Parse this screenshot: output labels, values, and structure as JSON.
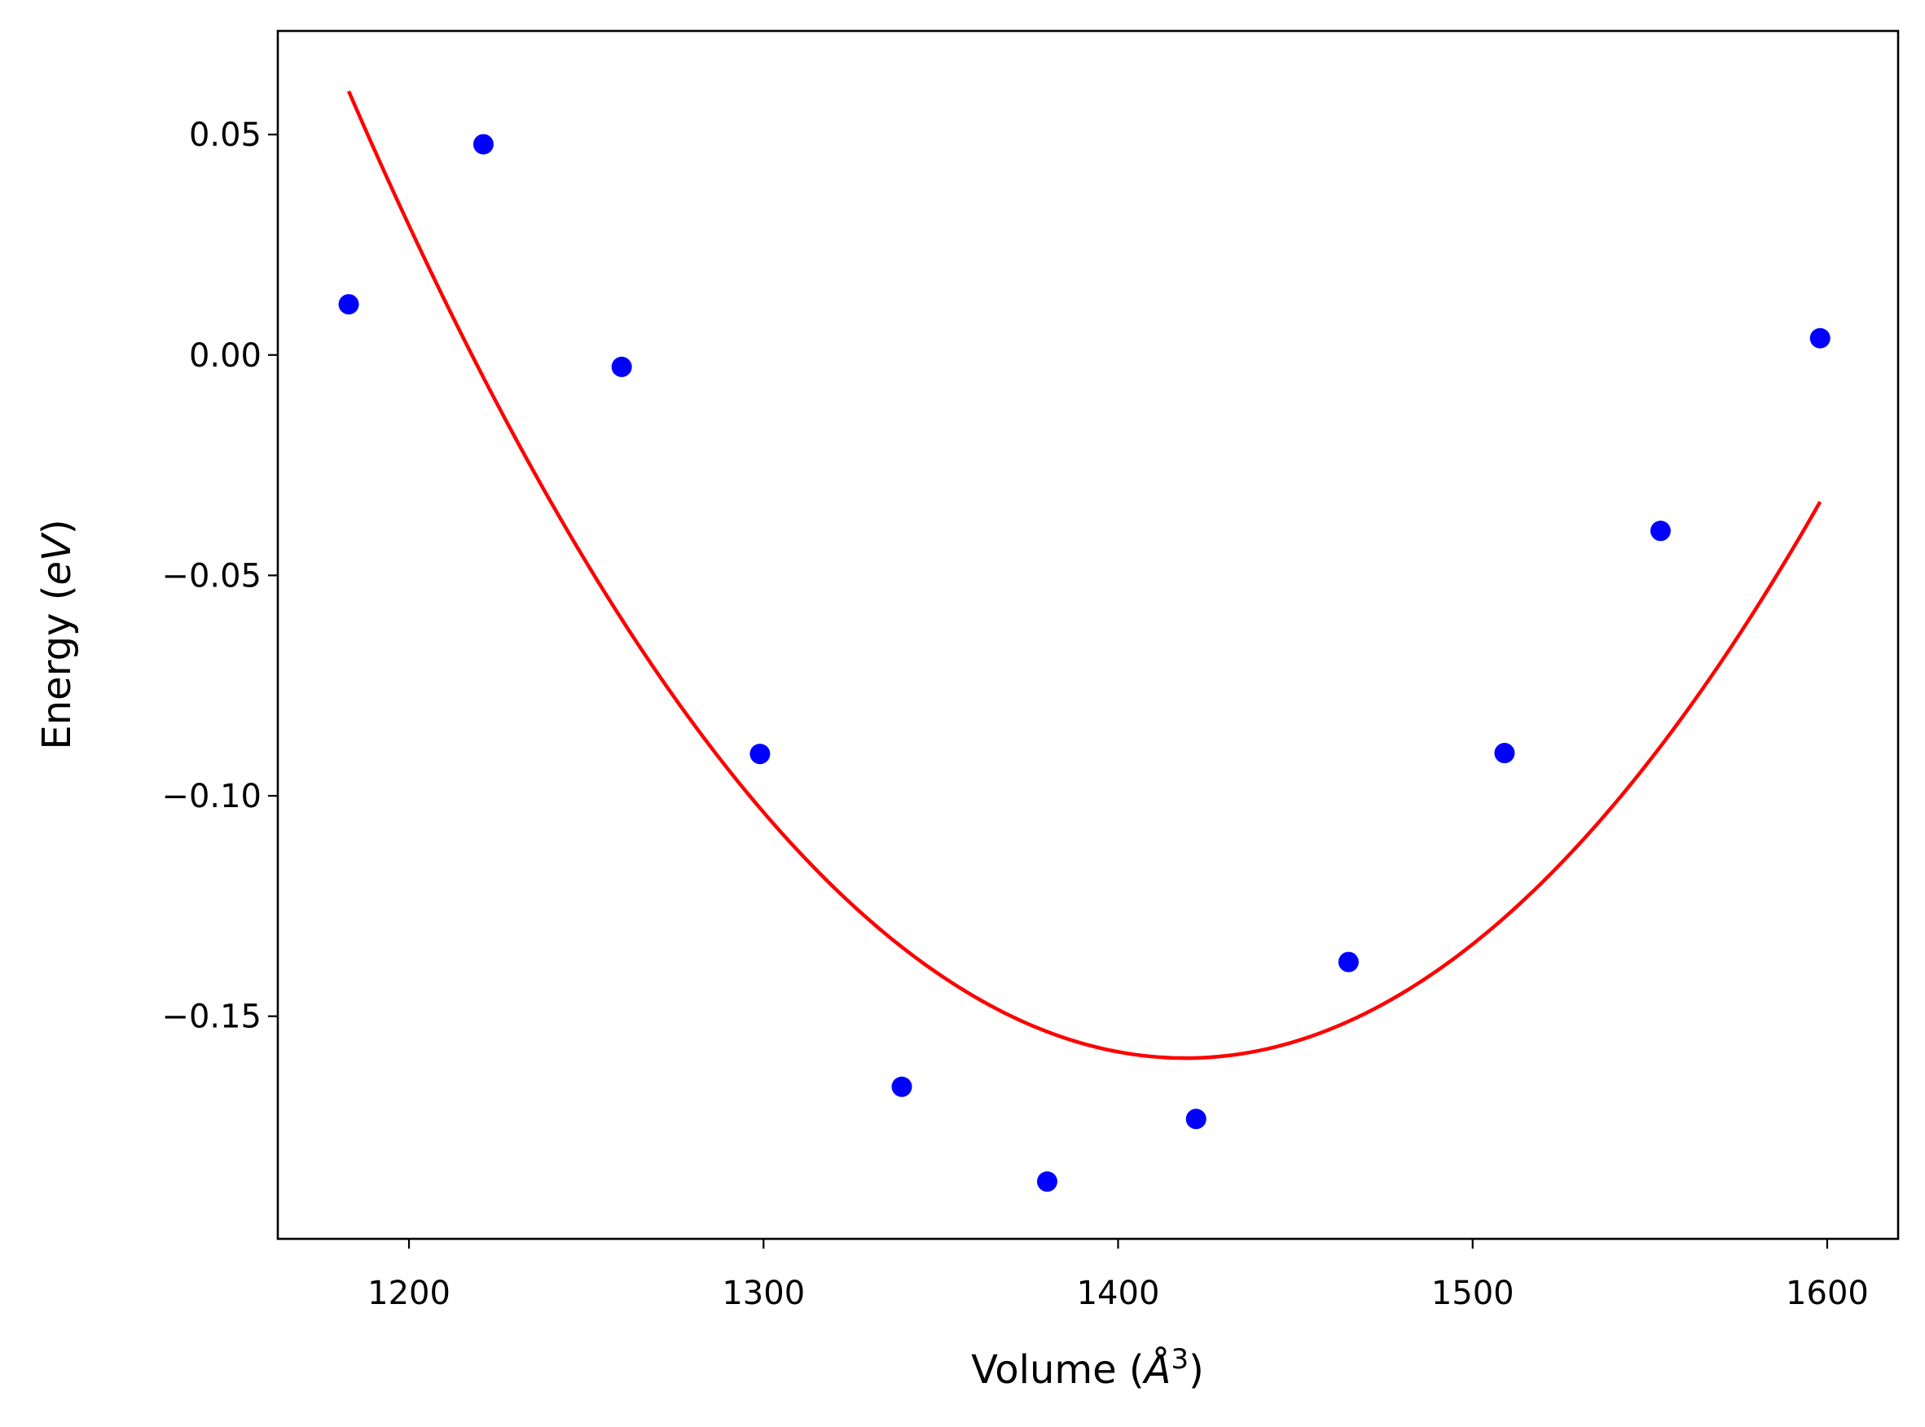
{
  "chart_data": {
    "type": "scatter",
    "title": "",
    "xlabel": "Volume (Å³)",
    "ylabel": "Energy (eV)",
    "xlabel_parts": {
      "prefix": "Volume (",
      "unit": "Å",
      "exponent": "3",
      "suffix": ")"
    },
    "ylabel_parts": {
      "prefix": "Energy (",
      "unit": "eV",
      "suffix": ")"
    },
    "xlim": [
      1163,
      1620
    ],
    "ylim": [
      -0.2005,
      0.0735
    ],
    "xticks": [
      1200,
      1300,
      1400,
      1500,
      1600
    ],
    "xtick_labels": [
      "1200",
      "1300",
      "1400",
      "1500",
      "1600"
    ],
    "yticks": [
      0.05,
      0.0,
      -0.05,
      -0.1,
      -0.15
    ],
    "ytick_labels": [
      "0.05",
      "0.00",
      "−0.05",
      "−0.10",
      "−0.15"
    ],
    "grid": false,
    "legend": "none",
    "series": [
      {
        "kind": "scatter",
        "color": "#0000ff",
        "x": [
          1183,
          1221,
          1260,
          1299,
          1339,
          1380,
          1422,
          1465,
          1509,
          1553,
          1598
        ],
        "y": [
          0.0115,
          0.0478,
          -0.0027,
          -0.0905,
          -0.166,
          -0.1875,
          -0.1733,
          -0.1377,
          -0.0903,
          -0.0399,
          0.0038
        ]
      },
      {
        "kind": "line",
        "color": "#ff0000",
        "fit": "quadratic",
        "x_min": 1183,
        "x_max": 1598,
        "vertex_x": 1419,
        "vertex_y": -0.1595,
        "curvature": 3.938e-06
      }
    ]
  }
}
